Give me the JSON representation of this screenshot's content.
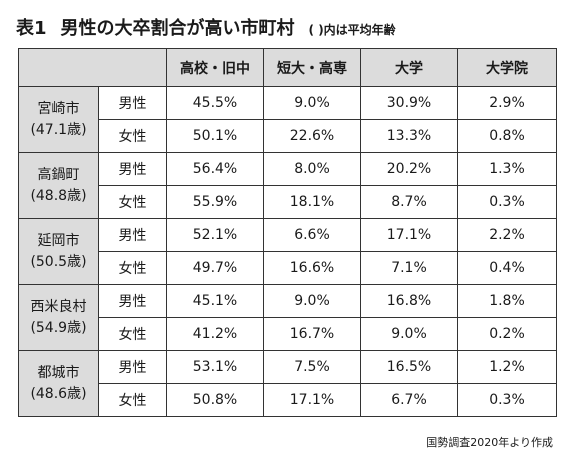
{
  "title": {
    "label": "表1",
    "text": "男性の大卒割合が高い市町村",
    "note": "( )内は平均年齢"
  },
  "table": {
    "headers": [
      "高校・旧中",
      "短大・高専",
      "大学",
      "大学院"
    ],
    "rows": [
      {
        "name": "宮崎市",
        "age": "(47.1歳)",
        "male": {
          "label": "男性",
          "values": [
            "45.5%",
            "9.0%",
            "30.9%",
            "2.9%"
          ]
        },
        "female": {
          "label": "女性",
          "values": [
            "50.1%",
            "22.6%",
            "13.3%",
            "0.8%"
          ]
        }
      },
      {
        "name": "高鍋町",
        "age": "(48.8歳)",
        "male": {
          "label": "男性",
          "values": [
            "56.4%",
            "8.0%",
            "20.2%",
            "1.3%"
          ]
        },
        "female": {
          "label": "女性",
          "values": [
            "55.9%",
            "18.1%",
            "8.7%",
            "0.3%"
          ]
        }
      },
      {
        "name": "延岡市",
        "age": "(50.5歳)",
        "male": {
          "label": "男性",
          "values": [
            "52.1%",
            "6.6%",
            "17.1%",
            "2.2%"
          ]
        },
        "female": {
          "label": "女性",
          "values": [
            "49.7%",
            "16.6%",
            "7.1%",
            "0.4%"
          ]
        }
      },
      {
        "name": "西米良村",
        "age": "(54.9歳)",
        "male": {
          "label": "男性",
          "values": [
            "45.1%",
            "9.0%",
            "16.8%",
            "1.8%"
          ]
        },
        "female": {
          "label": "女性",
          "values": [
            "41.2%",
            "16.7%",
            "9.0%",
            "0.2%"
          ]
        }
      },
      {
        "name": "都城市",
        "age": "(48.6歳)",
        "male": {
          "label": "男性",
          "values": [
            "53.1%",
            "7.5%",
            "16.5%",
            "1.2%"
          ]
        },
        "female": {
          "label": "女性",
          "values": [
            "50.8%",
            "17.1%",
            "6.7%",
            "0.3%"
          ]
        }
      }
    ]
  },
  "source": "国勢調査2020年より作成",
  "colors": {
    "header_bg": "#dcdcdc",
    "border": "#333333",
    "text": "#1a1a1a"
  }
}
